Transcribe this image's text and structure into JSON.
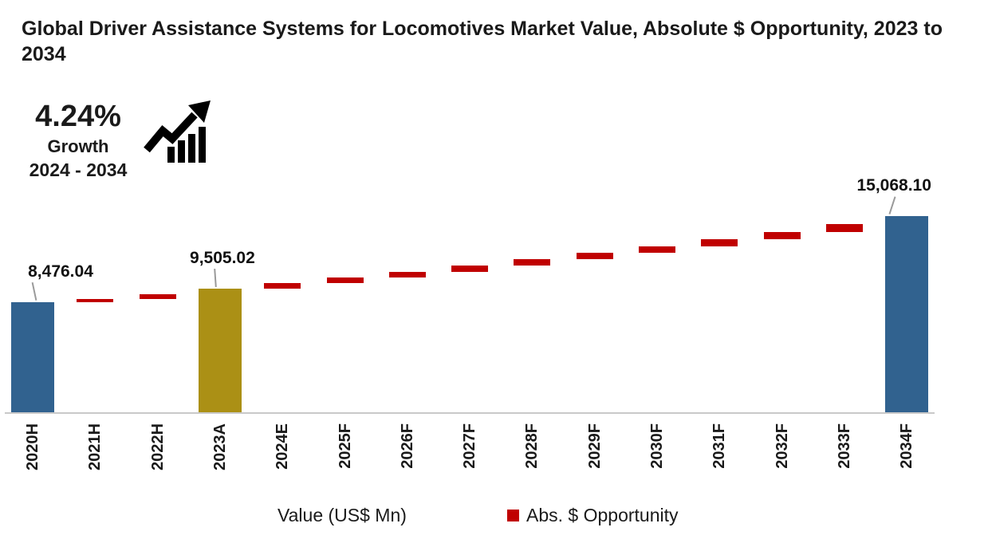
{
  "title": "Global Driver Assistance Systems for Locomotives Market Value, Absolute $ Opportunity, 2023 to 2034",
  "growth": {
    "percent": "4.24%",
    "label": "Growth",
    "period": "2024 - 2034",
    "icon": "trend-up-bars-icon"
  },
  "legend": {
    "axis_label": "Value (US$ Mn)",
    "series_label": "Abs. $ Opportunity",
    "series_color": "#C00000"
  },
  "colors": {
    "historical_bar": "#31628F",
    "actual_bar": "#AB9015",
    "opportunity": "#C00000",
    "axis_line": "#C9C9C9",
    "leader_line": "#9A9A9A",
    "text": "#1A1A1A"
  },
  "chart_data": {
    "type": "bar",
    "subtype": "waterfall",
    "title": "Global Driver Assistance Systems for Locomotives Market Value, Absolute $ Opportunity, 2023 to 2034",
    "xlabel": "",
    "ylabel": "Value (US$ Mn)",
    "ylim": [
      0,
      15068.1
    ],
    "y_axis_visible": false,
    "grid": false,
    "legend_position": "bottom",
    "categories": [
      "2020H",
      "2021H",
      "2022H",
      "2023A",
      "2024E",
      "2025F",
      "2026F",
      "2027F",
      "2028F",
      "2029F",
      "2030F",
      "2031F",
      "2032F",
      "2033F",
      "2034F"
    ],
    "bars": [
      {
        "category": "2020H",
        "value": 8476.04,
        "role": "total",
        "color": "#31628F",
        "label": "8,476.04",
        "label_dx": 35,
        "leader_dx": 7,
        "leader_angle": -12
      },
      {
        "category": "2021H",
        "value": 8700,
        "role": "delta",
        "color": "#C00000"
      },
      {
        "category": "2022H",
        "value": 9080,
        "role": "delta",
        "color": "#C00000"
      },
      {
        "category": "2023A",
        "value": 9505.02,
        "role": "total",
        "color": "#AB9015",
        "label": "9,505.02",
        "label_dx": 3,
        "leader_dx": -1,
        "leader_angle": -4
      },
      {
        "category": "2024E",
        "value": 9948,
        "role": "delta",
        "color": "#C00000"
      },
      {
        "category": "2025F",
        "value": 10370,
        "role": "delta",
        "color": "#C00000"
      },
      {
        "category": "2026F",
        "value": 10810,
        "role": "delta",
        "color": "#C00000"
      },
      {
        "category": "2027F",
        "value": 11268,
        "role": "delta",
        "color": "#C00000"
      },
      {
        "category": "2028F",
        "value": 11746,
        "role": "delta",
        "color": "#C00000"
      },
      {
        "category": "2029F",
        "value": 12244,
        "role": "delta",
        "color": "#C00000"
      },
      {
        "category": "2030F",
        "value": 12763,
        "role": "delta",
        "color": "#C00000"
      },
      {
        "category": "2031F",
        "value": 13304,
        "role": "delta",
        "color": "#C00000"
      },
      {
        "category": "2032F",
        "value": 13868,
        "role": "delta",
        "color": "#C00000"
      },
      {
        "category": "2033F",
        "value": 14456,
        "role": "delta",
        "color": "#C00000"
      },
      {
        "category": "2034F",
        "value": 15068.1,
        "role": "total",
        "color": "#31628F",
        "label": "15,068.10",
        "label_dx": -16,
        "leader_dx": -13,
        "leader_angle": 18
      }
    ],
    "annotated_values": {
      "2020H": "8,476.04",
      "2023A": "9,505.02",
      "2034F": "15,068.10"
    }
  }
}
